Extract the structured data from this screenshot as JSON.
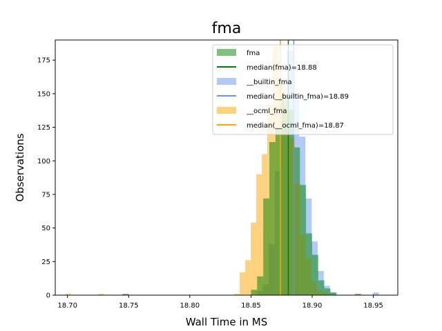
{
  "chart_data": {
    "type": "histogram",
    "title": "fma",
    "xlabel": "Wall Time in MS",
    "ylabel": "Observations",
    "xlim": [
      18.69,
      18.97
    ],
    "ylim": [
      0,
      190
    ],
    "xticks": [
      "18.70",
      "18.75",
      "18.80",
      "18.85",
      "18.90",
      "18.95"
    ],
    "xtick_values": [
      18.7,
      18.75,
      18.8,
      18.85,
      18.9,
      18.95
    ],
    "yticks": [
      "0",
      "25",
      "50",
      "75",
      "100",
      "125",
      "150",
      "175"
    ],
    "ytick_values": [
      0,
      25,
      50,
      75,
      100,
      125,
      150,
      175
    ],
    "legend_position": "upper right",
    "series": [
      {
        "name": "__builtin_fma",
        "color": "#6495ed",
        "alpha": 0.5,
        "bin_width": 0.005,
        "bins": [
          [
            18.857,
            3
          ],
          [
            18.862,
            8
          ],
          [
            18.867,
            38
          ],
          [
            18.872,
            92
          ],
          [
            18.877,
            130
          ],
          [
            18.882,
            182
          ],
          [
            18.887,
            150
          ],
          [
            18.892,
            118
          ],
          [
            18.897,
            72
          ],
          [
            18.902,
            40
          ],
          [
            18.907,
            18
          ],
          [
            18.912,
            7
          ],
          [
            18.917,
            2
          ],
          [
            18.952,
            2
          ]
        ]
      },
      {
        "name": "__ocml_fma",
        "color": "#ffa500",
        "alpha": 0.5,
        "bin_width": 0.0045,
        "bins": [
          [
            18.7005,
            1
          ],
          [
            18.7275,
            1
          ],
          [
            18.8385,
            1
          ],
          [
            18.843,
            17
          ],
          [
            18.8475,
            26
          ],
          [
            18.852,
            54
          ],
          [
            18.8565,
            90
          ],
          [
            18.861,
            105
          ],
          [
            18.8655,
            142
          ],
          [
            18.87,
            185
          ],
          [
            18.8745,
            157
          ],
          [
            18.879,
            137
          ],
          [
            18.8835,
            117
          ],
          [
            18.888,
            83
          ],
          [
            18.8925,
            45
          ],
          [
            18.897,
            27
          ],
          [
            18.9015,
            10
          ],
          [
            18.906,
            3
          ],
          [
            18.9105,
            2
          ]
        ]
      },
      {
        "name": "fma",
        "color": "#008000",
        "alpha": 0.5,
        "bin_width": 0.005,
        "bins": [
          [
            18.7475,
            1
          ],
          [
            18.8525,
            4
          ],
          [
            18.8575,
            14
          ],
          [
            18.8625,
            72
          ],
          [
            18.8675,
            114
          ],
          [
            18.8725,
            125
          ],
          [
            18.8775,
            150
          ],
          [
            18.8825,
            138
          ],
          [
            18.8875,
            110
          ],
          [
            18.8925,
            82
          ],
          [
            18.8975,
            46
          ],
          [
            18.9025,
            30
          ],
          [
            18.9075,
            11
          ],
          [
            18.9125,
            5
          ],
          [
            18.9175,
            2
          ],
          [
            18.9375,
            1
          ]
        ]
      }
    ],
    "vlines": [
      {
        "name": "median(fma)=18.88",
        "x": 18.8805,
        "color": "#008000"
      },
      {
        "name": "median(__builtin_fma)=18.89",
        "x": 18.885,
        "color": "#6495ed"
      },
      {
        "name": "median(__ocml_fma)=18.87",
        "x": 18.874,
        "color": "#ffa500"
      }
    ],
    "legend": [
      {
        "label": "fma",
        "kind": "patch",
        "color": "#008000",
        "alpha": 0.5
      },
      {
        "label": "median(fma)=18.88",
        "kind": "line",
        "color": "#008000"
      },
      {
        "label": "__builtin_fma",
        "kind": "patch",
        "color": "#6495ed",
        "alpha": 0.5
      },
      {
        "label": "median(__builtin_fma)=18.89",
        "kind": "line",
        "color": "#6495ed"
      },
      {
        "label": "__ocml_fma",
        "kind": "patch",
        "color": "#ffa500",
        "alpha": 0.5
      },
      {
        "label": "median(__ocml_fma)=18.87",
        "kind": "line",
        "color": "#ffa500"
      }
    ]
  }
}
